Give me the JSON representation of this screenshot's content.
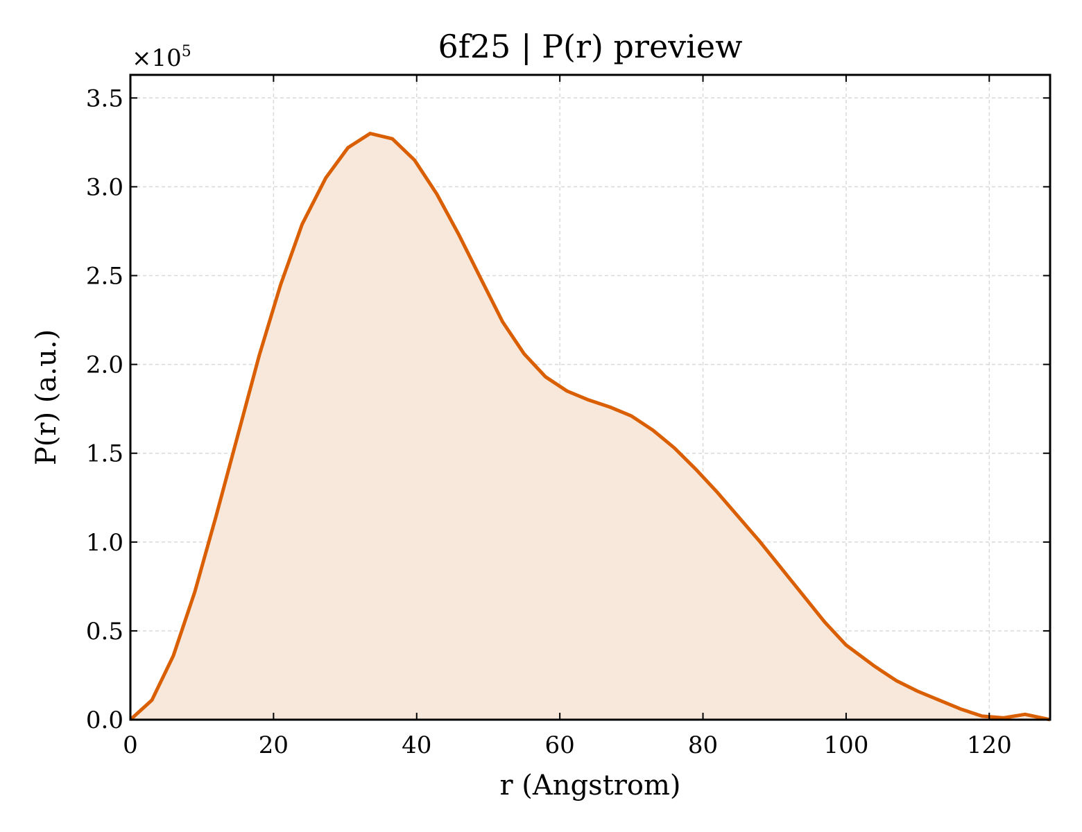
{
  "chart_data": {
    "type": "area",
    "title": "6f25 | P(r) preview",
    "xlabel": "r (Angstrom)",
    "ylabel": "P(r) (a.u.)",
    "y_multiplier": "×10",
    "y_multiplier_exp": "5",
    "xlim": [
      0,
      128.5
    ],
    "ylim": [
      0,
      3.63
    ],
    "x_ticks": [
      0,
      20,
      40,
      60,
      80,
      100,
      120
    ],
    "x_tick_labels": [
      "0",
      "20",
      "40",
      "60",
      "80",
      "100",
      "120"
    ],
    "y_ticks": [
      0,
      0.5,
      1.0,
      1.5,
      2.0,
      2.5,
      3.0,
      3.5
    ],
    "y_tick_labels": [
      "0.0",
      "0.5",
      "1.0",
      "1.5",
      "2.0",
      "2.5",
      "3.0",
      "3.5"
    ],
    "grid": true,
    "line_color": "#d95f02",
    "fill_color": "#f8e8dc",
    "series": [
      {
        "x": [
          0,
          3,
          6,
          9,
          12,
          15,
          18,
          21,
          24,
          27.3,
          30.4,
          33.5,
          36.6,
          39.7,
          42.8,
          45.9,
          49,
          52,
          55,
          58,
          61,
          64,
          67,
          70,
          73,
          76,
          79,
          82,
          85,
          88,
          91,
          94,
          97,
          100,
          104,
          107,
          110,
          113,
          116,
          119,
          122,
          125,
          128.5
        ],
        "y": [
          0,
          0.11,
          0.36,
          0.72,
          1.15,
          1.6,
          2.05,
          2.45,
          2.79,
          3.05,
          3.22,
          3.3,
          3.27,
          3.15,
          2.96,
          2.73,
          2.48,
          2.24,
          2.06,
          1.93,
          1.85,
          1.8,
          1.76,
          1.71,
          1.63,
          1.53,
          1.41,
          1.28,
          1.14,
          1.0,
          0.85,
          0.7,
          0.55,
          0.42,
          0.3,
          0.22,
          0.16,
          0.11,
          0.06,
          0.02,
          0.01,
          0.03,
          0.0
        ]
      }
    ]
  }
}
